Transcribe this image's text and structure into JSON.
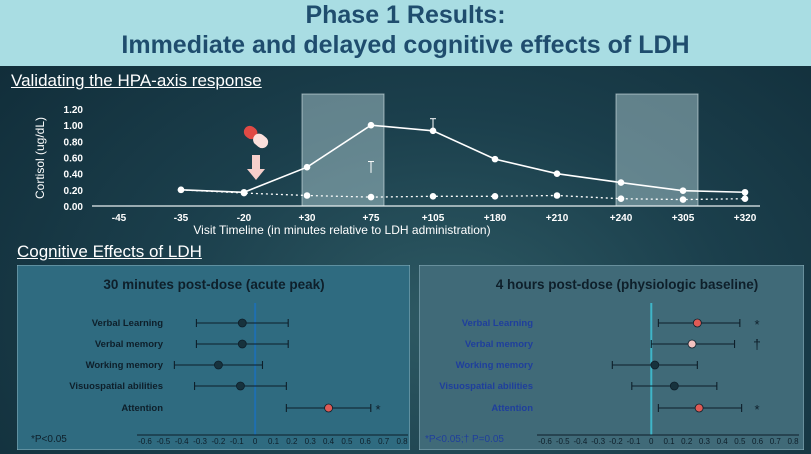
{
  "title": {
    "line1": "Phase 1 Results:",
    "line2": "Immediate and delayed cognitive effects of LDH"
  },
  "sections": {
    "hpa": "Validating the HPA-axis response",
    "cog": "Cognitive Effects of LDH"
  },
  "colors": {
    "title_bg": "#a9dde3",
    "title_text": "#1f4d6e",
    "highlight_red": "#e05a55",
    "highlight_pink": "#f3c2c0",
    "dot_dark": "#17323d",
    "axis_line_acute": "#1f6fb0",
    "axis_line_base": "#3fb5c8"
  },
  "icons": {
    "pill": "pill-icon",
    "arrow": "down-arrow-icon"
  },
  "chart_data": [
    {
      "type": "line",
      "ylabel": "Cortisol (ug/dL)",
      "xlabel": "Visit Timeline (in minutes relative to LDH administration)",
      "categories": [
        "-45",
        "-35",
        "-20",
        "+30",
        "+75",
        "+105",
        "+180",
        "+210",
        "+240",
        "+305",
        "+320"
      ],
      "y_ticks": [
        "0.00",
        "0.20",
        "0.40",
        "0.60",
        "0.80",
        "1.00",
        "1.20"
      ],
      "ylim": [
        0,
        1.2
      ],
      "shaded_categories": [
        "+30",
        "+240"
      ],
      "series": [
        {
          "style": "solid",
          "points": [
            [
              "-35",
              0.2
            ],
            [
              "-20",
              0.17
            ],
            [
              "+30",
              0.48
            ],
            [
              "+75",
              1.0
            ],
            [
              "+105",
              0.93
            ],
            [
              "+180",
              0.58
            ],
            [
              "+210",
              0.4
            ],
            [
              "+240",
              0.29
            ],
            [
              "+305",
              0.19
            ],
            [
              "+320",
              0.17
            ]
          ]
        },
        {
          "style": "dotted",
          "points": [
            [
              "-35",
              0.2
            ],
            [
              "-20",
              0.16
            ],
            [
              "+30",
              0.13
            ],
            [
              "+75",
              0.11
            ],
            [
              "+105",
              0.12
            ],
            [
              "+180",
              0.12
            ],
            [
              "+210",
              0.13
            ],
            [
              "+240",
              0.09
            ],
            [
              "+305",
              0.08
            ],
            [
              "+320",
              0.09
            ]
          ]
        }
      ]
    },
    {
      "type": "scatter",
      "title": "30 minutes post-dose (acute peak)",
      "footnote": "*P<0.05",
      "x_ticks": [
        "-0.6",
        "-0.5",
        "-0.4",
        "-0.3",
        "-0.2",
        "-0.1",
        "0",
        "0.1",
        "0.2",
        "0.3",
        "0.4",
        "0.5",
        "0.6",
        "0.7",
        "0.8"
      ],
      "xlim": [
        -0.6,
        0.8
      ],
      "rows": [
        {
          "label": "Verbal Learning",
          "value": -0.07,
          "ci": [
            -0.32,
            0.18
          ],
          "mark": "",
          "highlight": "none"
        },
        {
          "label": "Verbal memory",
          "value": -0.07,
          "ci": [
            -0.32,
            0.18
          ],
          "mark": "",
          "highlight": "none"
        },
        {
          "label": "Working memory",
          "value": -0.2,
          "ci": [
            -0.44,
            0.04
          ],
          "mark": "",
          "highlight": "none"
        },
        {
          "label": "Visuospatial abilities",
          "value": -0.08,
          "ci": [
            -0.33,
            0.17
          ],
          "mark": "",
          "highlight": "none"
        },
        {
          "label": "Attention",
          "value": 0.4,
          "ci": [
            0.17,
            0.63
          ],
          "mark": "*",
          "highlight": "red"
        }
      ]
    },
    {
      "type": "scatter",
      "title": "4 hours post-dose (physiologic baseline)",
      "footnote": "*P<0.05;† P=0.05",
      "x_ticks": [
        "-0.6",
        "-0.5",
        "-0.4",
        "-0.3",
        "-0.2",
        "-0.1",
        "0",
        "0.1",
        "0.2",
        "0.3",
        "0.4",
        "0.5",
        "0.6",
        "0.7",
        "0.8"
      ],
      "xlim": [
        -0.6,
        0.8
      ],
      "rows": [
        {
          "label": "Verbal Learning",
          "value": 0.26,
          "ci": [
            0.04,
            0.5
          ],
          "mark": "*",
          "highlight": "red"
        },
        {
          "label": "Verbal memory",
          "value": 0.23,
          "ci": [
            0.0,
            0.47
          ],
          "mark": "†",
          "highlight": "pink"
        },
        {
          "label": "Working memory",
          "value": 0.02,
          "ci": [
            -0.22,
            0.26
          ],
          "mark": "",
          "highlight": "none"
        },
        {
          "label": "Visuospatial abilities",
          "value": 0.13,
          "ci": [
            -0.11,
            0.37
          ],
          "mark": "",
          "highlight": "none"
        },
        {
          "label": "Attention",
          "value": 0.27,
          "ci": [
            0.04,
            0.51
          ],
          "mark": "*",
          "highlight": "red"
        }
      ]
    }
  ]
}
